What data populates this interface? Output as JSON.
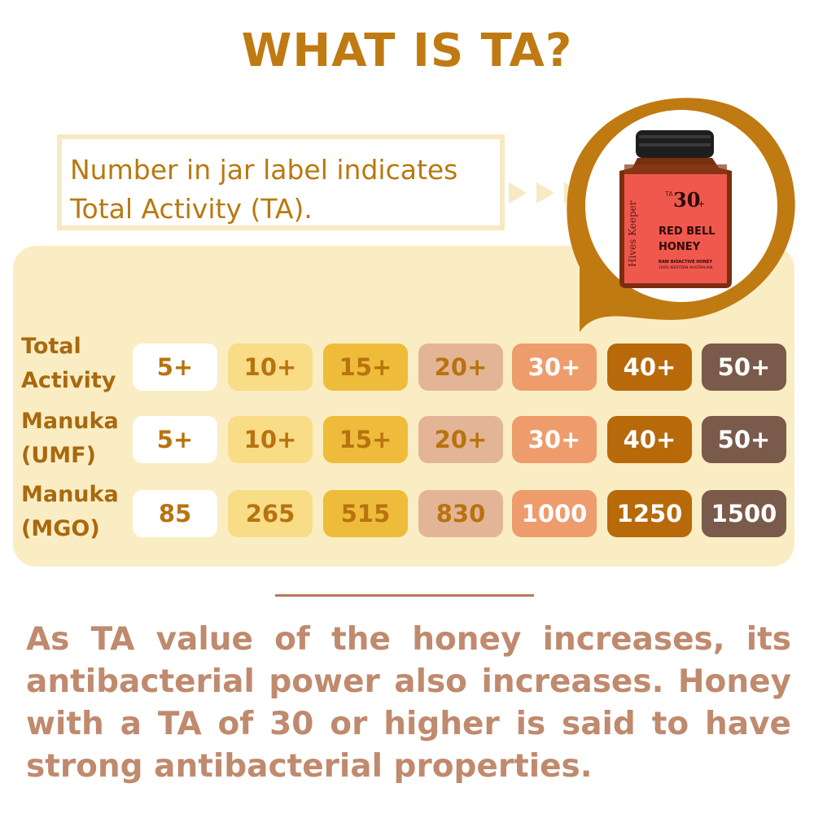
{
  "title": "WHAT IS TA?",
  "callout": {
    "line1": "Number in jar label indicates",
    "line2": "Total Activity (TA)."
  },
  "jar_label": {
    "brand": "Hives Keeper",
    "ta_prefix": "TA",
    "ta_value": "30",
    "ta_plus": "+",
    "name_line1": "RED BELL",
    "name_line2": "HONEY",
    "sub_line1": "RAW BIOACTIVE HONEY",
    "sub_line2": "100% WESTERN AUSTRALIAN"
  },
  "table": {
    "rows": [
      {
        "label": "Total\nActivity",
        "values": [
          "5+",
          "10+",
          "15+",
          "20+",
          "30+",
          "40+",
          "50+"
        ]
      },
      {
        "label": "Manuka\n(UMF)",
        "values": [
          "5+",
          "10+",
          "15+",
          "20+",
          "30+",
          "40+",
          "50+"
        ]
      },
      {
        "label": "Manuka\n(MGO)",
        "values": [
          "85",
          "265",
          "515",
          "830",
          "1000",
          "1250",
          "1500"
        ]
      }
    ],
    "column_colors": [
      "#ffffff",
      "#f8dc86",
      "#eebc3a",
      "#e3b596",
      "#ee9c6c",
      "#b8690a",
      "#7a5a4a"
    ],
    "text_colors": [
      "#b8730f",
      "#b8730f",
      "#b8730f",
      "#b8730f",
      "#ffffff",
      "#ffffff",
      "#ffffff"
    ]
  },
  "paragraph": "As TA value of the honey increases, its antibacterial power also increases. Honey with a TA of 30 or higher is said to have strong antibacterial properties.",
  "colors": {
    "title": "#c07a12",
    "panel": "#fbedc3",
    "bubble": "#c07a12",
    "paragraph": "#c08a6e",
    "jar_label": "#f0584e"
  }
}
